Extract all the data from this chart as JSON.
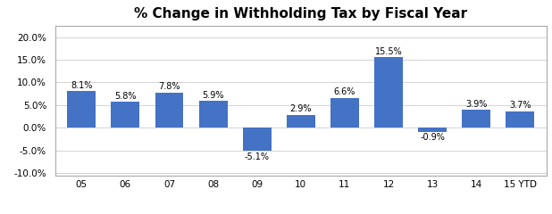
{
  "categories": [
    "05",
    "06",
    "07",
    "08",
    "09",
    "10",
    "11",
    "12",
    "13",
    "14",
    "15 YTD"
  ],
  "values": [
    8.1,
    5.8,
    7.8,
    5.9,
    -5.1,
    2.9,
    6.6,
    15.5,
    -0.9,
    3.9,
    3.7
  ],
  "labels": [
    "8.1%",
    "5.8%",
    "7.8%",
    "5.9%",
    "-5.1%",
    "2.9%",
    "6.6%",
    "15.5%",
    "-0.9%",
    "3.9%",
    "3.7%"
  ],
  "bar_color": "#4472C4",
  "title": "% Change in Withholding Tax by Fiscal Year",
  "title_fontsize": 11,
  "ylim": [
    -10.5,
    22.5
  ],
  "yticks": [
    -10.0,
    -5.0,
    0.0,
    5.0,
    10.0,
    15.0,
    20.0
  ],
  "background_color": "#FFFFFF",
  "grid_color": "#CCCCCC",
  "label_fontsize": 7,
  "tick_fontsize": 7.5
}
